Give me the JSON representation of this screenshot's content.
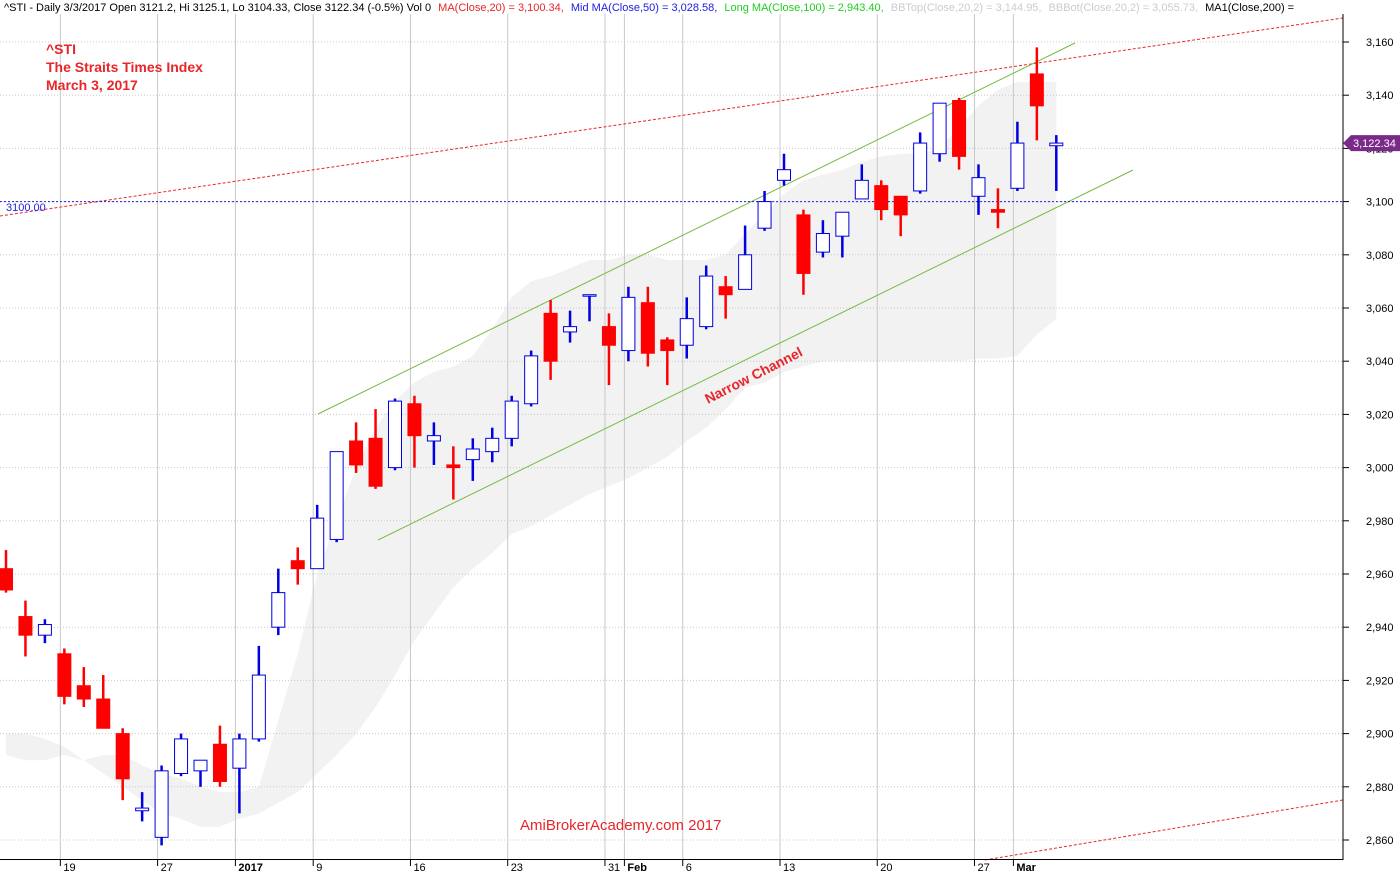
{
  "header": {
    "prefix": "^STI - Daily 3/3/2017 Open 3121.2, Hi 3125.1, Lo 3104.33, Close 3122.34 (-0.5%) Vol 0",
    "ma20": "MA(Close,20) = 3,100.34,",
    "ma50": "Mid MA(Close,50) = 3,028.58,",
    "ma100": "Long MA(Close,100) = 2,943.40,",
    "bbtop": "BBTop(Close,20,2) = 3,144.95,",
    "bbbot": "BBBot(Close,20,2) = 3,055.73,",
    "ma200": "MA1(Close,200) ="
  },
  "overlay": {
    "symbol": "^STI",
    "name": "The Straits Times Index",
    "date": "March 3, 2017"
  },
  "annotations": {
    "channel": "Narrow Channel",
    "watermark": "AmiBrokerAcademy.com  2017",
    "hline_label": "3100.00",
    "last_price": "3,122.34"
  },
  "colors": {
    "up": "#0000e0",
    "down": "#ff0000",
    "band": "#f2f2f2",
    "channel": "#77bb44",
    "trend": "#e8262a",
    "hline": "#2020e0",
    "price_tag": "#7b2a8a",
    "grid": "#c8c8c8"
  },
  "chart_data": {
    "type": "candlestick",
    "y_ticks": [
      2860,
      2880,
      2900,
      2920,
      2940,
      2960,
      2980,
      3000,
      3020,
      3040,
      3060,
      3080,
      3100,
      3120,
      3140,
      3160
    ],
    "ylim": [
      2852,
      3172
    ],
    "x_labels": [
      {
        "i": 3,
        "text": "19",
        "bold": false
      },
      {
        "i": 8,
        "text": "27",
        "bold": false
      },
      {
        "i": 12,
        "text": "2017",
        "bold": true
      },
      {
        "i": 16,
        "text": "9",
        "bold": false
      },
      {
        "i": 21,
        "text": "16",
        "bold": false
      },
      {
        "i": 26,
        "text": "23",
        "bold": false
      },
      {
        "i": 31,
        "text": "31",
        "bold": false
      },
      {
        "i": 32,
        "text": "Feb",
        "bold": true
      },
      {
        "i": 35,
        "text": "6",
        "bold": false
      },
      {
        "i": 40,
        "text": "13",
        "bold": false
      },
      {
        "i": 45,
        "text": "20",
        "bold": false
      },
      {
        "i": 50,
        "text": "27",
        "bold": false
      },
      {
        "i": 52,
        "text": "Mar",
        "bold": true
      }
    ],
    "candles": [
      {
        "o": 2962,
        "h": 2969,
        "l": 2953,
        "c": 2954
      },
      {
        "o": 2944,
        "h": 2950,
        "l": 2929,
        "c": 2937
      },
      {
        "o": 2937,
        "h": 2943,
        "l": 2934,
        "c": 2941
      },
      {
        "o": 2930,
        "h": 2932,
        "l": 2911,
        "c": 2914
      },
      {
        "o": 2918,
        "h": 2925,
        "l": 2910,
        "c": 2913
      },
      {
        "o": 2913,
        "h": 2922,
        "l": 2902,
        "c": 2902
      },
      {
        "o": 2900,
        "h": 2902,
        "l": 2875,
        "c": 2883
      },
      {
        "o": 2871,
        "h": 2878,
        "l": 2867,
        "c": 2872
      },
      {
        "o": 2861,
        "h": 2888,
        "l": 2858,
        "c": 2886
      },
      {
        "o": 2885,
        "h": 2900,
        "l": 2884,
        "c": 2898
      },
      {
        "o": 2886,
        "h": 2890,
        "l": 2880,
        "c": 2890
      },
      {
        "o": 2896,
        "h": 2903,
        "l": 2880,
        "c": 2882
      },
      {
        "o": 2887,
        "h": 2900,
        "l": 2870,
        "c": 2898
      },
      {
        "o": 2898,
        "h": 2933,
        "l": 2897,
        "c": 2922
      },
      {
        "o": 2940,
        "h": 2962,
        "l": 2937,
        "c": 2953
      },
      {
        "o": 2965,
        "h": 2970,
        "l": 2956,
        "c": 2962
      },
      {
        "o": 2962,
        "h": 2986,
        "l": 2962,
        "c": 2981
      },
      {
        "o": 2973,
        "h": 3005,
        "l": 2972,
        "c": 3006
      },
      {
        "o": 3010,
        "h": 3017,
        "l": 2998,
        "c": 3001
      },
      {
        "o": 3011,
        "h": 3022,
        "l": 2992,
        "c": 2993
      },
      {
        "o": 3000,
        "h": 3026,
        "l": 2999,
        "c": 3025
      },
      {
        "o": 3024,
        "h": 3027,
        "l": 3000,
        "c": 3012
      },
      {
        "o": 3010,
        "h": 3017,
        "l": 3001,
        "c": 3012
      },
      {
        "o": 3001,
        "h": 3008,
        "l": 2988,
        "c": 3000
      },
      {
        "o": 3003,
        "h": 3011,
        "l": 2995,
        "c": 3007
      },
      {
        "o": 3006,
        "h": 3015,
        "l": 3002,
        "c": 3011
      },
      {
        "o": 3011,
        "h": 3027,
        "l": 3008,
        "c": 3025
      },
      {
        "o": 3024,
        "h": 3044,
        "l": 3023,
        "c": 3042
      },
      {
        "o": 3058,
        "h": 3063,
        "l": 3033,
        "c": 3040
      },
      {
        "o": 3051,
        "h": 3059,
        "l": 3047,
        "c": 3053
      },
      {
        "o": 3065,
        "h": 3065,
        "l": 3055,
        "c": 3065
      },
      {
        "o": 3053,
        "h": 3058,
        "l": 3031,
        "c": 3046
      },
      {
        "o": 3044,
        "h": 3068,
        "l": 3040,
        "c": 3064
      },
      {
        "o": 3062,
        "h": 3068,
        "l": 3038,
        "c": 3043
      },
      {
        "o": 3048,
        "h": 3049,
        "l": 3031,
        "c": 3044
      },
      {
        "o": 3046,
        "h": 3064,
        "l": 3041,
        "c": 3056
      },
      {
        "o": 3053,
        "h": 3076,
        "l": 3052,
        "c": 3072
      },
      {
        "o": 3068,
        "h": 3072,
        "l": 3056,
        "c": 3065
      },
      {
        "o": 3067,
        "h": 3091,
        "l": 3068,
        "c": 3080
      },
      {
        "o": 3090,
        "h": 3104,
        "l": 3089,
        "c": 3100
      },
      {
        "o": 3108,
        "h": 3118,
        "l": 3106,
        "c": 3112
      },
      {
        "o": 3095,
        "h": 3097,
        "l": 3065,
        "c": 3073
      },
      {
        "o": 3081,
        "h": 3093,
        "l": 3079,
        "c": 3088
      },
      {
        "o": 3087,
        "h": 3096,
        "l": 3079,
        "c": 3096
      },
      {
        "o": 3101,
        "h": 3114,
        "l": 3101,
        "c": 3108
      },
      {
        "o": 3106,
        "h": 3108,
        "l": 3093,
        "c": 3097
      },
      {
        "o": 3102,
        "h": 3102,
        "l": 3087,
        "c": 3095
      },
      {
        "o": 3104,
        "h": 3126,
        "l": 3103,
        "c": 3122
      },
      {
        "o": 3118,
        "h": 3137,
        "l": 3115,
        "c": 3137
      },
      {
        "o": 3138,
        "h": 3139,
        "l": 3112,
        "c": 3117
      },
      {
        "o": 3102,
        "h": 3114,
        "l": 3095,
        "c": 3109
      },
      {
        "o": 3097,
        "h": 3105,
        "l": 3090,
        "c": 3096
      },
      {
        "o": 3105,
        "h": 3130,
        "l": 3104,
        "c": 3122
      },
      {
        "o": 3148,
        "h": 3158,
        "l": 3123,
        "c": 3136
      },
      {
        "o": 3121,
        "h": 3125,
        "l": 3104,
        "c": 3122
      }
    ],
    "band_upper": [
      2892,
      2890,
      2890,
      2892,
      2890,
      2892,
      2892,
      2888,
      2885,
      2883,
      2880,
      2878,
      2878,
      2880,
      2905,
      2930,
      2960,
      2980,
      3000,
      3015,
      3025,
      3032,
      3036,
      3038,
      3042,
      3052,
      3064,
      3070,
      3072,
      3075,
      3078,
      3078,
      3080,
      3080,
      3078,
      3078,
      3078,
      3080,
      3088,
      3095,
      3103,
      3108,
      3110,
      3112,
      3115,
      3117,
      3118,
      3118,
      3120,
      3128,
      3136,
      3142,
      3145,
      3145,
      3145
    ],
    "band_lower": [
      2900,
      2900,
      2898,
      2895,
      2890,
      2885,
      2880,
      2875,
      2870,
      2868,
      2865,
      2865,
      2868,
      2870,
      2874,
      2878,
      2885,
      2892,
      2900,
      2910,
      2922,
      2935,
      2945,
      2955,
      2962,
      2968,
      2975,
      2978,
      2982,
      2986,
      2990,
      2993,
      2996,
      3000,
      3004,
      3010,
      3015,
      3022,
      3030,
      3032,
      3036,
      3038,
      3040,
      3040,
      3040,
      3040,
      3040,
      3040,
      3040,
      3040,
      3041,
      3041,
      3042,
      3050,
      3056
    ]
  }
}
